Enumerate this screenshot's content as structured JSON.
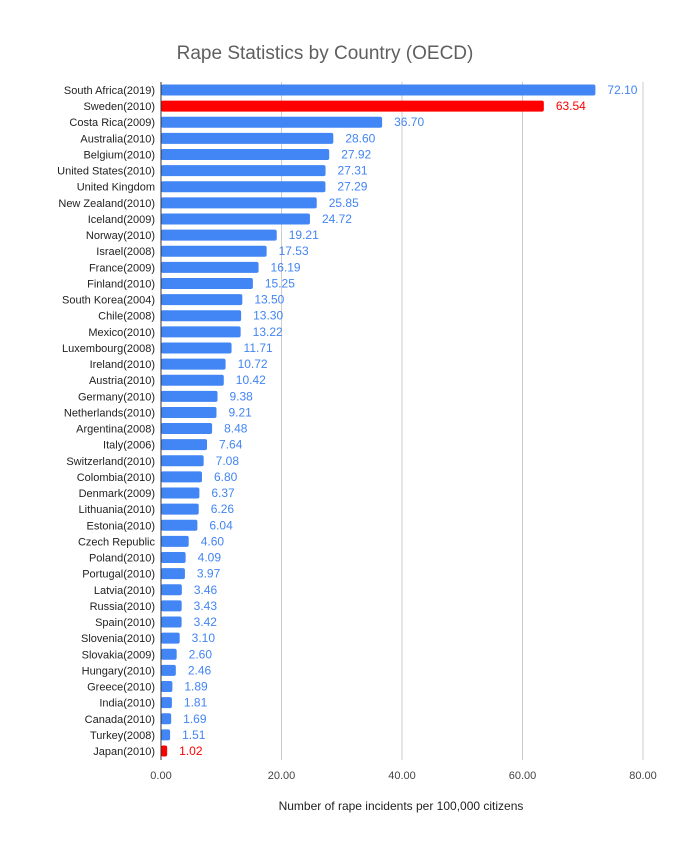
{
  "chart_data": {
    "type": "bar",
    "orientation": "horizontal",
    "title": "Rape Statistics by Country (OECD)",
    "xlabel": "Number of rape incidents per 100,000 citizens",
    "ylabel": "",
    "xlim": [
      0,
      80
    ],
    "xticks": [
      "0.00",
      "20.00",
      "40.00",
      "60.00",
      "80.00"
    ],
    "grid": true,
    "colors": {
      "default": "#4285f4",
      "highlight": "#ff0000",
      "title": "#5f5f5f"
    },
    "categories": [
      "South Africa(2019)",
      "Sweden(2010)",
      "Costa Rica(2009)",
      "Australia(2010)",
      "Belgium(2010)",
      "United States(2010)",
      "United Kingdom",
      "New Zealand(2010)",
      "Iceland(2009)",
      "Norway(2010)",
      "Israel(2008)",
      "France(2009)",
      "Finland(2010)",
      "South Korea(2004)",
      "Chile(2008)",
      "Mexico(2010)",
      "Luxembourg(2008)",
      "Ireland(2010)",
      "Austria(2010)",
      "Germany(2010)",
      "Netherlands(2010)",
      "Argentina(2008)",
      "Italy(2006)",
      "Switzerland(2010)",
      "Colombia(2010)",
      "Denmark(2009)",
      "Lithuania(2010)",
      "Estonia(2010)",
      "Czech Republic",
      "Poland(2010)",
      "Portugal(2010)",
      "Latvia(2010)",
      "Russia(2010)",
      "Spain(2010)",
      "Slovenia(2010)",
      "Slovakia(2009)",
      "Hungary(2010)",
      "Greece(2010)",
      "India(2010)",
      "Canada(2010)",
      "Turkey(2008)",
      "Japan(2010)"
    ],
    "values": [
      72.1,
      63.54,
      36.7,
      28.6,
      27.92,
      27.31,
      27.29,
      25.85,
      24.72,
      19.21,
      17.53,
      16.19,
      15.25,
      13.5,
      13.3,
      13.22,
      11.71,
      10.72,
      10.42,
      9.38,
      9.21,
      8.48,
      7.64,
      7.08,
      6.8,
      6.37,
      6.26,
      6.04,
      4.6,
      4.09,
      3.97,
      3.46,
      3.43,
      3.42,
      3.1,
      2.6,
      2.46,
      1.89,
      1.81,
      1.69,
      1.51,
      1.02
    ],
    "data_labels": [
      "72.10",
      "63.54",
      "36.70",
      "28.60",
      "27.92",
      "27.31",
      "27.29",
      "25.85",
      "24.72",
      "19.21",
      "17.53",
      "16.19",
      "15.25",
      "13.50",
      "13.30",
      "13.22",
      "11.71",
      "10.72",
      "10.42",
      "9.38",
      "9.21",
      "8.48",
      "7.64",
      "7.08",
      "6.80",
      "6.37",
      "6.26",
      "6.04",
      "4.60",
      "4.09",
      "3.97",
      "3.46",
      "3.43",
      "3.42",
      "3.10",
      "2.60",
      "2.46",
      "1.89",
      "1.81",
      "1.69",
      "1.51",
      "1.02"
    ],
    "highlighted": [
      "Sweden(2010)",
      "Japan(2010)"
    ]
  }
}
